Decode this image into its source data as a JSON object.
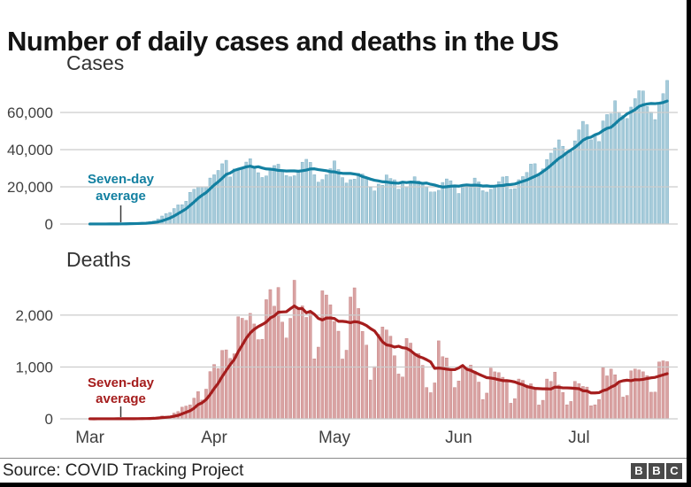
{
  "title": "Number of daily cases and deaths in the US",
  "footer": {
    "source": "Source: COVID Tracking Project",
    "logo_letters": [
      "B",
      "B",
      "C"
    ]
  },
  "colors": {
    "cases_bar": "#a6cbda",
    "cases_bar_edge": "#6fa8c0",
    "cases_line": "#1380a1",
    "deaths_bar": "#d9a2a2",
    "deaths_bar_edge": "#c37f7f",
    "deaths_line": "#a51d1d",
    "grid": "#cccccc",
    "tick_text": "#404040",
    "annotation_tick": "#3a3a3a",
    "title_text": "#141414"
  },
  "chart_data": [
    {
      "id": "cases",
      "type": "bar",
      "title": "Cases",
      "annotation": {
        "lines": [
          "Seven-day",
          "average"
        ],
        "anchor_day": 8
      },
      "series": [
        {
          "name": "Daily cases",
          "type": "bar"
        },
        {
          "name": "Seven-day average",
          "type": "line",
          "derived": "7-day rolling mean of daily cases"
        }
      ],
      "ylim": [
        0,
        80000
      ],
      "y_ticks": [
        {
          "value": 0,
          "label": "0"
        },
        {
          "value": 20000,
          "label": "20,000"
        },
        {
          "value": 40000,
          "label": "40,000"
        },
        {
          "value": 60000,
          "label": "60,000"
        }
      ],
      "x_axis": {
        "months": [],
        "month_day_offsets": [],
        "days": 145
      },
      "values": [
        24,
        20,
        31,
        53,
        66,
        104,
        118,
        137,
        163,
        290,
        307,
        380,
        523,
        605,
        732,
        1280,
        1706,
        2722,
        4300,
        5594,
        6205,
        8334,
        10270,
        10410,
        12226,
        17050,
        18695,
        19979,
        19904,
        20022,
        24742,
        26473,
        28819,
        32425,
        34272,
        25316,
        29595,
        29556,
        30613,
        33323,
        35098,
        29861,
        27620,
        25023,
        25892,
        29916,
        31451,
        32165,
        28971,
        26078,
        25432,
        25971,
        28675,
        33264,
        34796,
        33159,
        26505,
        22541,
        23901,
        26500,
        29763,
        33955,
        29288,
        24972,
        22078,
        23841,
        24128,
        27208,
        26906,
        25140,
        19672,
        17826,
        21467,
        20869,
        26391,
        24487,
        23792,
        18757,
        21841,
        19970,
        22724,
        25434,
        23130,
        21359,
        19790,
        17222,
        17256,
        18139,
        22357,
        24266,
        23290,
        20724,
        16429,
        20461,
        19699,
        21140,
        24720,
        22646,
        17919,
        17176,
        18679,
        20486,
        22800,
        25286,
        25592,
        18771,
        19040,
        23826,
        25520,
        27740,
        32218,
        32434,
        26079,
        29627,
        34720,
        38115,
        40949,
        45255,
        41823,
        38673,
        38958,
        44734,
        50655,
        55220,
        53483,
        45300,
        47511,
        44361,
        55442,
        58858,
        59260,
        66281,
        59747,
        58349,
        56750,
        62879,
        67404,
        71670,
        71558,
        63201,
        60207,
        56172,
        64499,
        70106,
        77217
      ]
    },
    {
      "id": "deaths",
      "type": "bar",
      "title": "Deaths",
      "annotation": {
        "lines": [
          "Seven-day",
          "average"
        ],
        "anchor_day": 8
      },
      "series": [
        {
          "name": "Daily deaths",
          "type": "bar"
        },
        {
          "name": "Seven-day average",
          "type": "line",
          "derived": "7-day rolling mean of daily deaths"
        }
      ],
      "ylim": [
        0,
        2870
      ],
      "y_ticks": [
        {
          "value": 0,
          "label": "0"
        },
        {
          "value": 1000,
          "label": "1,000"
        },
        {
          "value": 2000,
          "label": "2,000"
        }
      ],
      "x_axis": {
        "months": [
          "Mar",
          "Apr",
          "May",
          "Jun",
          "Jul"
        ],
        "month_day_offsets": [
          0,
          31,
          61,
          92,
          122
        ],
        "days": 145
      },
      "values": [
        1,
        0,
        1,
        2,
        1,
        2,
        2,
        3,
        4,
        2,
        4,
        2,
        7,
        5,
        11,
        18,
        23,
        41,
        57,
        49,
        46,
        111,
        140,
        225,
        247,
        268,
        400,
        525,
        363,
        573,
        912,
        1049,
        968,
        1321,
        1331,
        1165,
        1255,
        1970,
        1940,
        1900,
        2035,
        1830,
        1528,
        1535,
        2299,
        2494,
        2173,
        2535,
        1867,
        1561,
        1939,
        2674,
        2142,
        2179,
        1957,
        2065,
        1157,
        1384,
        2470,
        2390,
        2201,
        1878,
        1691,
        1154,
        1324,
        2350,
        2528,
        2129,
        1687,
        1422,
        750,
        1008,
        1630,
        1772,
        1715,
        1595,
        1218,
        865,
        808,
        1552,
        1461,
        1263,
        1261,
        1032,
        605,
        505,
        693,
        1505,
        1199,
        1175,
        960,
        605,
        730,
        1031,
        995,
        1036,
        921,
        709,
        373,
        497,
        979,
        907,
        891,
        802,
        709,
        301,
        389,
        768,
        742,
        651,
        676,
        587,
        267,
        358,
        768,
        722,
        902,
        652,
        508,
        271,
        335,
        723,
        679,
        625,
        613,
        252,
        271,
        374,
        993,
        829,
        959,
        850,
        717,
        420,
        451,
        926,
        961,
        943,
        908,
        833,
        514,
        516,
        1098,
        1119,
        1103
      ]
    }
  ]
}
